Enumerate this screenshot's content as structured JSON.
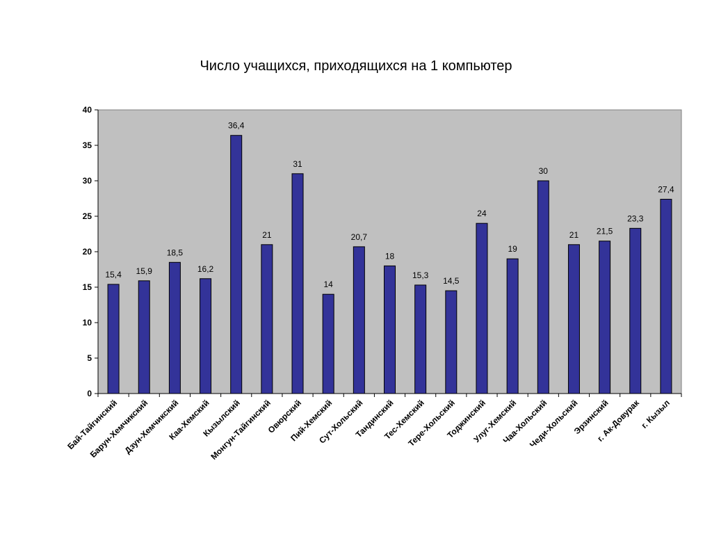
{
  "chart_data": {
    "type": "bar",
    "title": "Число учащихся, приходящихся на 1 компьютер",
    "categories": [
      "Бай-Тайгинский",
      "Барун-Хемчикский",
      "Дзун-Хемчикский",
      "Каа-Хемский",
      "Кызылский",
      "Монгун-Тайгинский",
      "Овюрский",
      "Пий-Хемский",
      "Сут-Хольский",
      "Тандинский",
      "Тес-Хемский",
      "Тере-Хольский",
      "Тоджинский",
      "Улуг-Хемский",
      "Чаа-Хольский",
      "Чеди-Хольский",
      "Эрзинский",
      "г. Ак-Довурак",
      "г. Кызыл"
    ],
    "values": [
      15.4,
      15.9,
      18.5,
      16.2,
      36.4,
      21,
      31,
      14,
      20.7,
      18,
      15.3,
      14.5,
      24,
      19,
      30,
      21,
      21.5,
      23.3,
      27.4
    ],
    "value_labels": [
      "15,4",
      "15,9",
      "18,5",
      "16,2",
      "36,4",
      "21",
      "31",
      "14",
      "20,7",
      "18",
      "15,3",
      "14,5",
      "24",
      "19",
      "30",
      "21",
      "21,5",
      "23,3",
      "27,4"
    ],
    "ylim": [
      0,
      40
    ],
    "yticks": [
      0,
      5,
      10,
      15,
      20,
      25,
      30,
      35,
      40
    ],
    "xlabel": "",
    "ylabel": "",
    "grid": false,
    "legend": "none",
    "colors": {
      "bar": "#333399",
      "bar_edge": "#000000",
      "plot_background": "#c0c0c0",
      "axis": "#000000"
    }
  }
}
